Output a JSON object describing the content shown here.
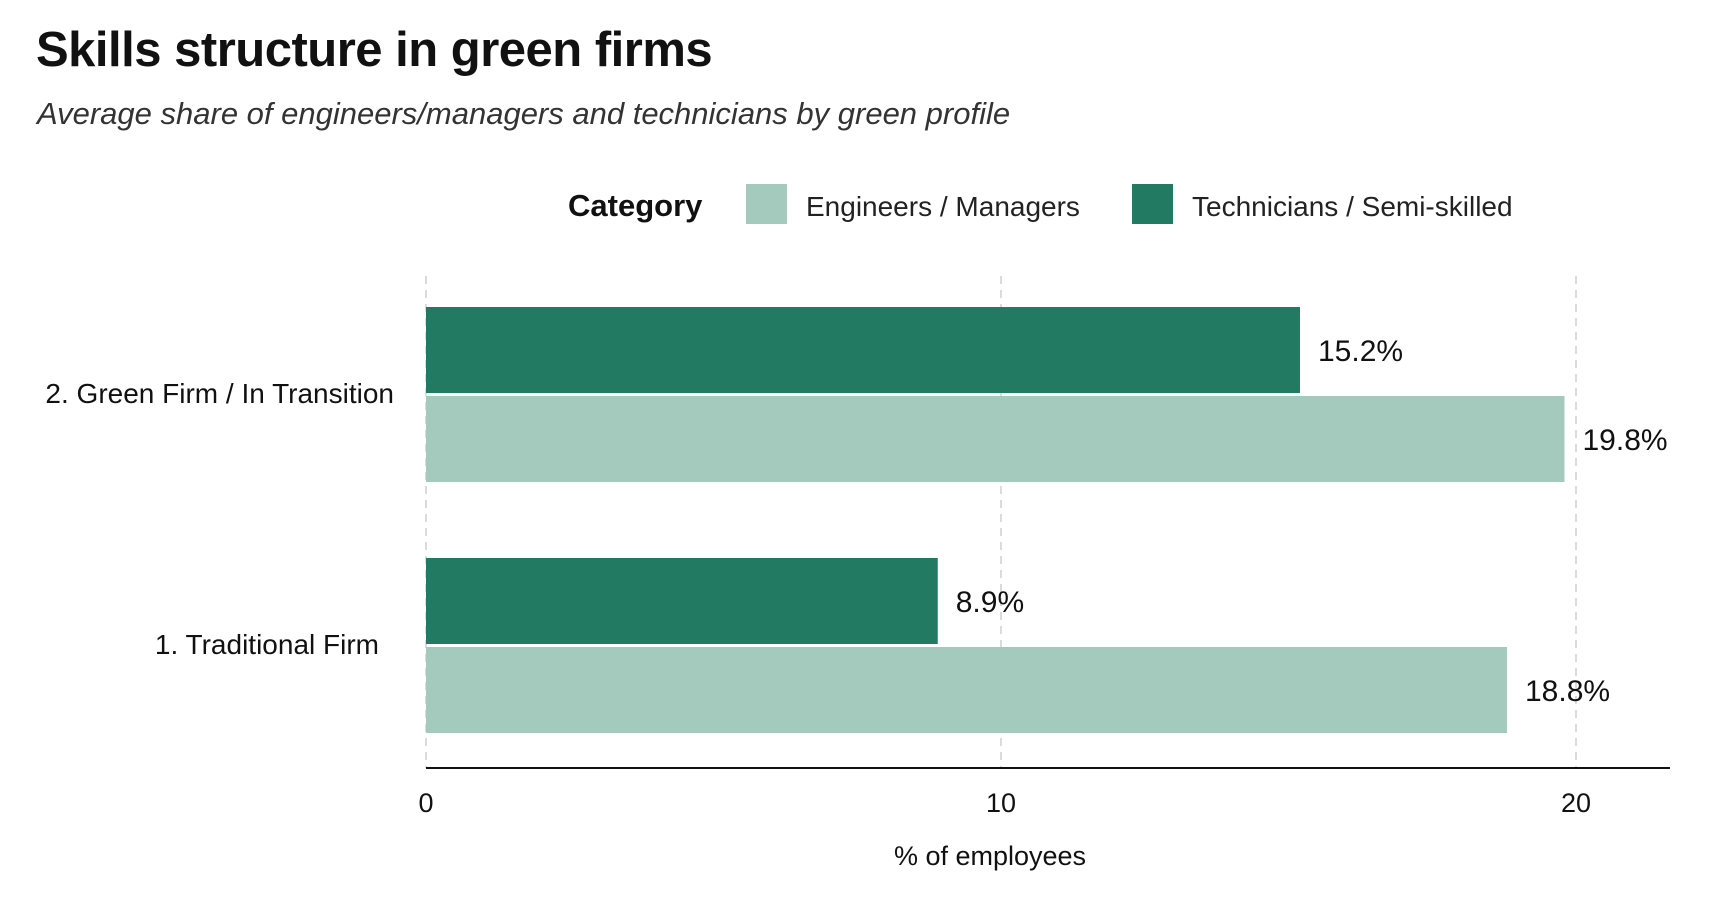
{
  "chart_data": {
    "type": "bar",
    "orientation": "horizontal",
    "title": "Skills structure in green firms",
    "subtitle": "Average share of engineers/managers and technicians by green profile",
    "legend_title": "Category",
    "legend_placement": "top",
    "categories": [
      "2. Green Firm / In Transition",
      "1. Traditional Firm"
    ],
    "series": [
      {
        "name": "Technicians / Semi-skilled",
        "color": "#227a62",
        "values": [
          15.2,
          8.9
        ],
        "labels": [
          "15.2%",
          "8.9%"
        ]
      },
      {
        "name": "Engineers / Managers",
        "color": "#a4c9bd",
        "values": [
          19.8,
          18.8
        ],
        "labels": [
          "19.8%",
          "18.8%"
        ]
      }
    ],
    "legend_order": [
      "Engineers / Managers",
      "Technicians / Semi-skilled"
    ],
    "xlabel": "% of employees",
    "xlim": [
      0,
      21.7
    ],
    "xticks": [
      0,
      10,
      20
    ],
    "xtick_labels": [
      "0",
      "10",
      "20"
    ],
    "grid": "vertical dashed"
  }
}
